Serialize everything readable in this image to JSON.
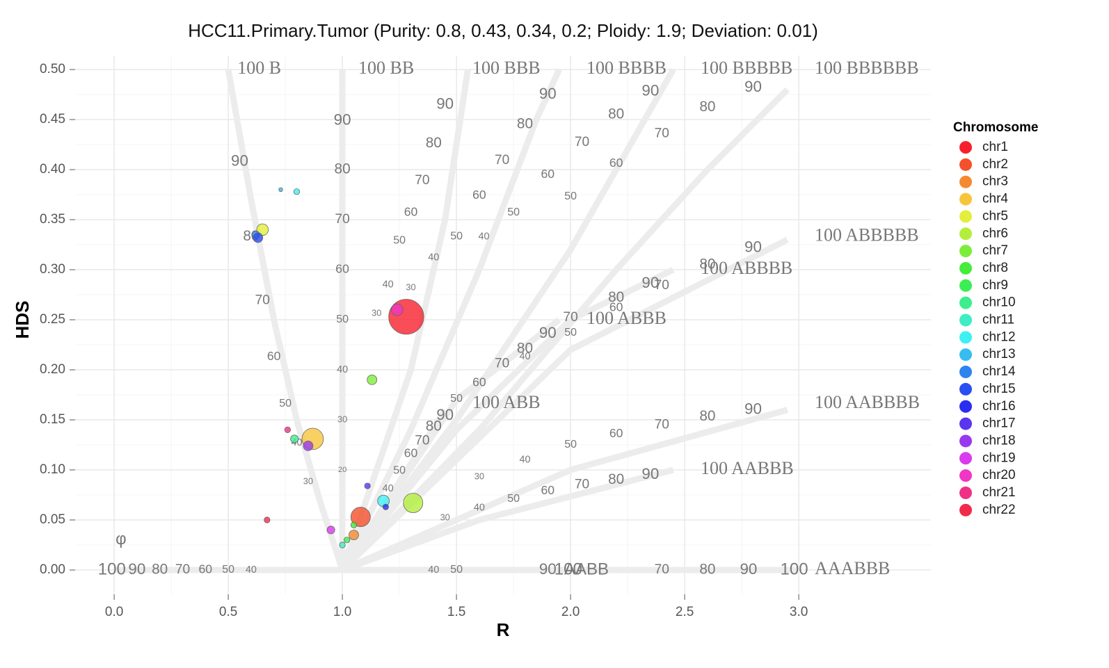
{
  "chart_data": {
    "type": "scatter",
    "title": "HCC11.Primary.Tumor (Purity: 0.8, 0.43, 0.34, 0.2; Ploidy: 1.9; Deviation: 0.01)",
    "x_label": "R",
    "y_label": "HDS",
    "legend_title": "Chromosome",
    "legend_position": "right",
    "grid": true,
    "xlim": [
      -0.171,
      3.579
    ],
    "ylim": [
      -0.0243,
      0.5139
    ],
    "xticks": [
      {
        "value": 0,
        "label": "0.0"
      },
      {
        "value": 0.5,
        "label": "0.5"
      },
      {
        "value": 1,
        "label": "1.0"
      },
      {
        "value": 1.5,
        "label": "1.5"
      },
      {
        "value": 2,
        "label": "2.0"
      },
      {
        "value": 2.5,
        "label": "2.5"
      },
      {
        "value": 3,
        "label": "3.0"
      }
    ],
    "yticks": [
      {
        "value": 0,
        "label": "0.00"
      },
      {
        "value": 0.05,
        "label": "0.05"
      },
      {
        "value": 0.1,
        "label": "0.10"
      },
      {
        "value": 0.15,
        "label": "0.15"
      },
      {
        "value": 0.2,
        "label": "0.20"
      },
      {
        "value": 0.25,
        "label": "0.25"
      },
      {
        "value": 0.3,
        "label": "0.30"
      },
      {
        "value": 0.35,
        "label": "0.35"
      },
      {
        "value": 0.4,
        "label": "0.40"
      },
      {
        "value": 0.45,
        "label": "0.45"
      },
      {
        "value": 0.5,
        "label": "0.50"
      }
    ],
    "curves": [
      {
        "label": "100 B",
        "label_x": 0.54,
        "label_y": 0.5,
        "x": [
          1,
          0.9,
          0.8,
          0.7,
          0.6,
          0.5
        ],
        "y": [
          0,
          0.07,
          0.15,
          0.25,
          0.37,
          0.5
        ],
        "purity_labels": [
          {
            "text": "90",
            "x": 0.55,
            "y": 0.408
          },
          {
            "text": "80",
            "x": 0.6,
            "y": 0.333
          },
          {
            "text": "70",
            "x": 0.65,
            "y": 0.269
          },
          {
            "text": "60",
            "x": 0.7,
            "y": 0.213
          },
          {
            "text": "50",
            "x": 0.75,
            "y": 0.166
          },
          {
            "text": "40",
            "x": 0.8,
            "y": 0.127
          },
          {
            "text": "30",
            "x": 0.85,
            "y": 0.088
          }
        ]
      },
      {
        "label": "100 BB",
        "label_x": 1.07,
        "label_y": 0.5,
        "x": [
          1,
          1
        ],
        "y": [
          0,
          0.5
        ],
        "purity_labels": [
          {
            "text": "90",
            "x": 1,
            "y": 0.449
          },
          {
            "text": "80",
            "x": 1,
            "y": 0.4
          },
          {
            "text": "70",
            "x": 1,
            "y": 0.35
          },
          {
            "text": "60",
            "x": 1,
            "y": 0.3
          },
          {
            "text": "50",
            "x": 1,
            "y": 0.25
          },
          {
            "text": "40",
            "x": 1,
            "y": 0.2
          },
          {
            "text": "30",
            "x": 1,
            "y": 0.15
          },
          {
            "text": "20",
            "x": 1,
            "y": 0.1
          }
        ]
      },
      {
        "label": "100 BBB",
        "label_x": 1.57,
        "label_y": 0.5,
        "x": [
          1,
          1.15,
          1.3,
          1.45,
          1.55
        ],
        "y": [
          0,
          0.1,
          0.2,
          0.35,
          0.5
        ],
        "purity_labels": [
          {
            "text": "90",
            "x": 1.45,
            "y": 0.465
          },
          {
            "text": "80",
            "x": 1.4,
            "y": 0.426
          },
          {
            "text": "70",
            "x": 1.35,
            "y": 0.389
          },
          {
            "text": "60",
            "x": 1.3,
            "y": 0.357
          },
          {
            "text": "50",
            "x": 1.25,
            "y": 0.329
          },
          {
            "text": "40",
            "x": 1.2,
            "y": 0.285
          },
          {
            "text": "30",
            "x": 1.15,
            "y": 0.256
          }
        ]
      },
      {
        "label": "100 BBBB",
        "label_x": 2.07,
        "label_y": 0.5,
        "x": [
          1,
          1.3,
          1.6,
          1.85,
          1.95
        ],
        "y": [
          0,
          0.14,
          0.3,
          0.45,
          0.5
        ],
        "purity_labels": [
          {
            "text": "90",
            "x": 1.9,
            "y": 0.475
          },
          {
            "text": "80",
            "x": 1.8,
            "y": 0.445
          },
          {
            "text": "70",
            "x": 1.7,
            "y": 0.409
          },
          {
            "text": "60",
            "x": 1.6,
            "y": 0.374
          },
          {
            "text": "50",
            "x": 1.5,
            "y": 0.333
          },
          {
            "text": "40",
            "x": 1.4,
            "y": 0.312
          },
          {
            "text": "30",
            "x": 1.3,
            "y": 0.282
          }
        ]
      },
      {
        "label": "100 BBBBB",
        "label_x": 2.57,
        "label_y": 0.5,
        "x": [
          1,
          1.5,
          2.0,
          2.3,
          2.45
        ],
        "y": [
          0,
          0.15,
          0.32,
          0.44,
          0.5
        ],
        "purity_labels": [
          {
            "text": "90",
            "x": 2.35,
            "y": 0.478
          },
          {
            "text": "80",
            "x": 2.2,
            "y": 0.455
          },
          {
            "text": "70",
            "x": 2.05,
            "y": 0.427
          },
          {
            "text": "60",
            "x": 1.9,
            "y": 0.395
          },
          {
            "text": "50",
            "x": 1.75,
            "y": 0.357
          },
          {
            "text": "40",
            "x": 1.62,
            "y": 0.333
          }
        ]
      },
      {
        "label": "100 BBBBBB",
        "label_x": 3.07,
        "label_y": 0.5,
        "x": [
          1,
          1.6,
          2.2,
          2.6,
          2.95
        ],
        "y": [
          0,
          0.14,
          0.3,
          0.4,
          0.48
        ],
        "purity_labels": [
          {
            "text": "90",
            "x": 2.8,
            "y": 0.482
          },
          {
            "text": "80",
            "x": 2.6,
            "y": 0.462
          },
          {
            "text": "70",
            "x": 2.4,
            "y": 0.436
          },
          {
            "text": "60",
            "x": 2.2,
            "y": 0.406
          },
          {
            "text": "50",
            "x": 2.0,
            "y": 0.373
          }
        ]
      },
      {
        "label": "100 ABB",
        "label_x": 1.57,
        "label_y": 0.166,
        "x": [
          1,
          1.2,
          1.45
        ],
        "y": [
          0,
          0.07,
          0.16
        ],
        "purity_labels": [
          {
            "text": "90",
            "x": 1.45,
            "y": 0.154
          },
          {
            "text": "80",
            "x": 1.4,
            "y": 0.143
          },
          {
            "text": "70",
            "x": 1.35,
            "y": 0.129
          },
          {
            "text": "60",
            "x": 1.3,
            "y": 0.116
          },
          {
            "text": "50",
            "x": 1.25,
            "y": 0.099
          },
          {
            "text": "40",
            "x": 1.2,
            "y": 0.081
          }
        ]
      },
      {
        "label": "100 ABBB",
        "label_x": 2.07,
        "label_y": 0.25,
        "x": [
          1,
          1.5,
          1.95
        ],
        "y": [
          0,
          0.17,
          0.25
        ],
        "purity_labels": [
          {
            "text": "90",
            "x": 1.9,
            "y": 0.236
          },
          {
            "text": "80",
            "x": 1.8,
            "y": 0.221
          },
          {
            "text": "70",
            "x": 1.7,
            "y": 0.206
          },
          {
            "text": "60",
            "x": 1.6,
            "y": 0.187
          },
          {
            "text": "50",
            "x": 1.5,
            "y": 0.171
          }
        ]
      },
      {
        "label": "100 ABBBB",
        "label_x": 2.57,
        "label_y": 0.3,
        "x": [
          1,
          1.5,
          2.0,
          2.45
        ],
        "y": [
          0,
          0.14,
          0.25,
          0.3
        ],
        "purity_labels": [
          {
            "text": "90",
            "x": 2.35,
            "y": 0.286
          },
          {
            "text": "80",
            "x": 2.2,
            "y": 0.272
          },
          {
            "text": "70",
            "x": 2.0,
            "y": 0.252
          }
        ]
      },
      {
        "label": "100 ABBBBB",
        "label_x": 3.07,
        "label_y": 0.333,
        "x": [
          1,
          2,
          2.95
        ],
        "y": [
          0,
          0.22,
          0.33
        ],
        "purity_labels": [
          {
            "text": "90",
            "x": 2.8,
            "y": 0.322
          },
          {
            "text": "80",
            "x": 2.6,
            "y": 0.305
          },
          {
            "text": "70",
            "x": 2.4,
            "y": 0.284
          },
          {
            "text": "60",
            "x": 2.2,
            "y": 0.262
          },
          {
            "text": "50",
            "x": 2.0,
            "y": 0.237
          },
          {
            "text": "40",
            "x": 1.8,
            "y": 0.213
          }
        ]
      },
      {
        "label": "100 AABBBB",
        "label_x": 3.07,
        "label_y": 0.166,
        "x": [
          1,
          2,
          2.95
        ],
        "y": [
          0,
          0.1,
          0.16
        ],
        "purity_labels": [
          {
            "text": "90",
            "x": 2.8,
            "y": 0.16
          },
          {
            "text": "80",
            "x": 2.6,
            "y": 0.153
          },
          {
            "text": "70",
            "x": 2.4,
            "y": 0.145
          },
          {
            "text": "60",
            "x": 2.2,
            "y": 0.136
          },
          {
            "text": "50",
            "x": 2.0,
            "y": 0.125
          },
          {
            "text": "40",
            "x": 1.8,
            "y": 0.11
          },
          {
            "text": "30",
            "x": 1.6,
            "y": 0.093
          }
        ]
      },
      {
        "label": "100 AABBB",
        "label_x": 2.57,
        "label_y": 0.1,
        "x": [
          1,
          1.6,
          2.45
        ],
        "y": [
          0,
          0.05,
          0.1
        ],
        "purity_labels": [
          {
            "text": "90",
            "x": 2.35,
            "y": 0.095
          },
          {
            "text": "80",
            "x": 2.2,
            "y": 0.09
          },
          {
            "text": "70",
            "x": 2.05,
            "y": 0.085
          },
          {
            "text": "60",
            "x": 1.9,
            "y": 0.079
          },
          {
            "text": "50",
            "x": 1.75,
            "y": 0.071
          },
          {
            "text": "40",
            "x": 1.6,
            "y": 0.062
          },
          {
            "text": "30",
            "x": 1.45,
            "y": 0.052
          }
        ]
      },
      {
        "label": "AAABBB",
        "label_x": 3.07,
        "label_y": 0,
        "x": [
          0,
          3
        ],
        "y": [
          0,
          0
        ],
        "purity_labels": [
          {
            "text": "AABB",
            "x": 2.07,
            "y": 0
          },
          {
            "text": "100",
            "x": 2.98,
            "y": 0
          },
          {
            "text": "90",
            "x": 2.78,
            "y": 0
          },
          {
            "text": "80",
            "x": 2.6,
            "y": 0
          },
          {
            "text": "70",
            "x": 2.4,
            "y": 0
          },
          {
            "text": "100",
            "x": 1.99,
            "y": 0
          },
          {
            "text": "90",
            "x": 1.9,
            "y": 0
          },
          {
            "text": "50",
            "x": 1.5,
            "y": 0
          },
          {
            "text": "40",
            "x": 1.4,
            "y": 0
          },
          {
            "text": "100",
            "x": -0.01,
            "y": 0
          },
          {
            "text": "90",
            "x": 0.1,
            "y": 0
          },
          {
            "text": "80",
            "x": 0.2,
            "y": 0
          },
          {
            "text": "70",
            "x": 0.3,
            "y": 0
          },
          {
            "text": "60",
            "x": 0.4,
            "y": 0
          },
          {
            "text": "50",
            "x": 0.5,
            "y": 0
          },
          {
            "text": "40",
            "x": 0.6,
            "y": 0
          },
          {
            "text": "φ",
            "x": 0.03,
            "y": 0.03
          }
        ]
      }
    ],
    "series": [
      {
        "name": "chr1",
        "color": "#f7212e",
        "x": [
          1.28
        ],
        "values": [
          0.253
        ],
        "sizes": [
          18
        ]
      },
      {
        "name": "chr2",
        "color": "#f5502a",
        "x": [
          1.08
        ],
        "values": [
          0.053
        ],
        "sizes": [
          10
        ]
      },
      {
        "name": "chr3",
        "color": "#f5892f",
        "x": [
          1.05
        ],
        "values": [
          0.035
        ],
        "sizes": [
          5
        ]
      },
      {
        "name": "chr4",
        "color": "#f7c53b",
        "x": [
          0.87
        ],
        "values": [
          0.131
        ],
        "sizes": [
          11
        ]
      },
      {
        "name": "chr5",
        "color": "#e3ee3d",
        "x": [
          0.65
        ],
        "values": [
          0.34
        ],
        "sizes": [
          6
        ]
      },
      {
        "name": "chr6",
        "color": "#b4ee3d",
        "x": [
          1.31
        ],
        "values": [
          0.067
        ],
        "sizes": [
          10
        ]
      },
      {
        "name": "chr7",
        "color": "#7ded3a",
        "x": [
          1.13
        ],
        "values": [
          0.19
        ],
        "sizes": [
          5
        ]
      },
      {
        "name": "chr8",
        "color": "#45ec3b",
        "x": [
          1.05
        ],
        "values": [
          0.045
        ],
        "sizes": [
          3
        ]
      },
      {
        "name": "chr9",
        "color": "#3bee55",
        "x": [
          1.02
        ],
        "values": [
          0.03
        ],
        "sizes": [
          3
        ]
      },
      {
        "name": "chr10",
        "color": "#3eed8d",
        "x": [
          0.79
        ],
        "values": [
          0.131
        ],
        "sizes": [
          4
        ]
      },
      {
        "name": "chr11",
        "color": "#3eedc3",
        "x": [
          1.0
        ],
        "values": [
          0.025
        ],
        "sizes": [
          3
        ]
      },
      {
        "name": "chr12",
        "color": "#3ef0f2",
        "x": [
          1.18,
          0.8
        ],
        "values": [
          0.069,
          0.378
        ],
        "sizes": [
          6,
          3
        ]
      },
      {
        "name": "chr13",
        "color": "#36bcf0",
        "x": [
          0.73
        ],
        "values": [
          0.38
        ],
        "sizes": [
          2
        ]
      },
      {
        "name": "chr14",
        "color": "#2f83ef",
        "x": [
          0.62
        ],
        "values": [
          0.335
        ],
        "sizes": [
          4
        ]
      },
      {
        "name": "chr15",
        "color": "#2a4ef0",
        "x": [
          0.63
        ],
        "values": [
          0.332
        ],
        "sizes": [
          5
        ]
      },
      {
        "name": "chr16",
        "color": "#2a2ef0",
        "x": [
          1.19
        ],
        "values": [
          0.063
        ],
        "sizes": [
          3
        ]
      },
      {
        "name": "chr17",
        "color": "#5a35f0",
        "x": [
          1.11
        ],
        "values": [
          0.084
        ],
        "sizes": [
          3
        ]
      },
      {
        "name": "chr18",
        "color": "#9a38ef",
        "x": [
          0.85
        ],
        "values": [
          0.124
        ],
        "sizes": [
          5
        ]
      },
      {
        "name": "chr19",
        "color": "#d93bef",
        "x": [
          0.95
        ],
        "values": [
          0.04
        ],
        "sizes": [
          4
        ]
      },
      {
        "name": "chr20",
        "color": "#ef36c5",
        "x": [
          1.24
        ],
        "values": [
          0.26
        ],
        "sizes": [
          6
        ]
      },
      {
        "name": "chr21",
        "color": "#f02f86",
        "x": [
          0.76
        ],
        "values": [
          0.14
        ],
        "sizes": [
          3
        ]
      },
      {
        "name": "chr22",
        "color": "#f22a4a",
        "x": [
          0.67
        ],
        "values": [
          0.05
        ],
        "sizes": [
          3
        ]
      }
    ]
  }
}
